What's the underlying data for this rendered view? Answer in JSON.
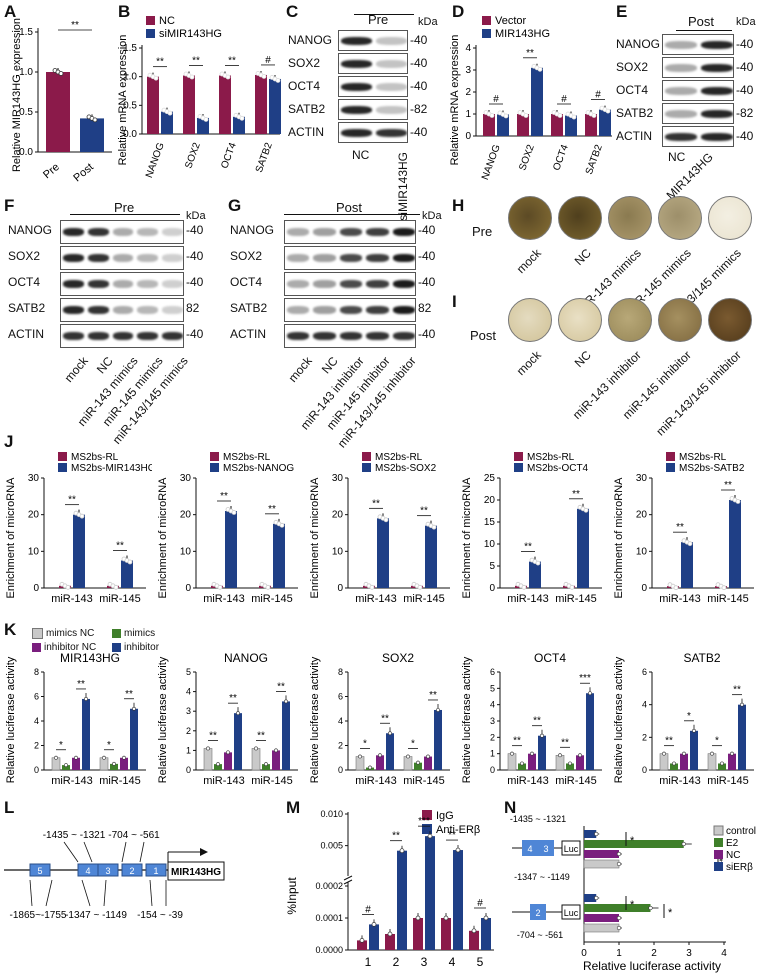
{
  "panel_letters": [
    "A",
    "B",
    "C",
    "D",
    "E",
    "F",
    "G",
    "H",
    "I",
    "J",
    "K",
    "L",
    "M",
    "N"
  ],
  "colors": {
    "maroon": "#8B1A4A",
    "navy": "#1F3F86",
    "green": "#3F7F2A",
    "purple": "#7A1E7E",
    "gray": "#C9C9C9",
    "blue": "#2E5FAC",
    "lightblue": "#4F86D6"
  },
  "panelA": {
    "ylabel": "Relative MIR143HG expression",
    "categories": [
      "Pre",
      "Post"
    ],
    "values": [
      1.0,
      0.42
    ],
    "errors": [
      0.05,
      0.05
    ],
    "ylim": [
      0,
      1.5
    ],
    "ticks": [
      "0.0",
      "0.5",
      "1.0",
      "1.5"
    ],
    "sig": "**"
  },
  "panelB": {
    "legend": [
      "NC",
      "siMIR143HG"
    ],
    "ylabel": "Relative mRNA expression",
    "categories": [
      "NANOG",
      "SOX2",
      "OCT4",
      "SATB2"
    ],
    "nc": [
      1.0,
      1.02,
      1.02,
      1.03
    ],
    "si": [
      0.39,
      0.28,
      0.3,
      0.96
    ],
    "ylim": [
      0,
      1.5
    ],
    "ticks": [
      "0.0",
      "0.5",
      "1.0",
      "1.5"
    ],
    "sig": [
      "**",
      "**",
      "**",
      "#"
    ]
  },
  "panelC": {
    "header": "Pre",
    "kda": "kDa",
    "rows": [
      "NANOG",
      "SOX2",
      "OCT4",
      "SATB2",
      "ACTIN"
    ],
    "mw": [
      "-40",
      "-40",
      "-40",
      "-82",
      "-40"
    ],
    "lanes": [
      "NC",
      "siMIR143HG"
    ]
  },
  "panelD": {
    "legend": [
      "Vector",
      "MIR143HG"
    ],
    "ylabel": "Relative mRNA expression",
    "categories": [
      "NANOG",
      "SOX2",
      "OCT4",
      "SATB2"
    ],
    "vec": [
      1.0,
      1.0,
      1.0,
      1.0
    ],
    "mir": [
      0.98,
      3.1,
      0.93,
      1.2
    ],
    "ylim": [
      0,
      4
    ],
    "ticks": [
      "0",
      "1",
      "2",
      "3",
      "4"
    ],
    "sig": [
      "#",
      "**",
      "#",
      "#"
    ]
  },
  "panelE": {
    "header": "Post",
    "kda": "kDa",
    "rows": [
      "NANOG",
      "SOX2",
      "OCT4",
      "SATB2",
      "ACTIN"
    ],
    "mw": [
      "-40",
      "-40",
      "-40",
      "-82",
      "-40"
    ],
    "lanes": [
      "NC",
      "MIR143HG"
    ]
  },
  "panelF": {
    "header": "Pre",
    "kda": "kDa",
    "rows": [
      "NANOG",
      "SOX2",
      "OCT4",
      "SATB2",
      "ACTIN"
    ],
    "mw": [
      "-40",
      "-40",
      "-40",
      "82",
      "-40"
    ],
    "lanes": [
      "mock",
      "NC",
      "miR-143 mimics",
      "miR-145 mimics",
      "miR-143/145 mimics"
    ]
  },
  "panelG": {
    "header": "Post",
    "kda": "kDa",
    "rows": [
      "NANOG",
      "SOX2",
      "OCT4",
      "SATB2",
      "ACTIN"
    ],
    "mw": [
      "-40",
      "-40",
      "-40",
      "82",
      "-40"
    ],
    "lanes": [
      "mock",
      "NC",
      "miR-143 inhibitor",
      "miR-145 inhibitor",
      "miR-143/145 inhibitor"
    ]
  },
  "panelH": {
    "row_label": "Pre",
    "lanes": [
      "mock",
      "NC",
      "miR-143 mimics",
      "miR-145 mimics",
      "miR-143/145 mimics"
    ]
  },
  "panelI": {
    "row_label": "Post",
    "lanes": [
      "mock",
      "NC",
      "miR-143 inhibitor",
      "miR-145 inhibitor",
      "miR-143/145 inhibitor"
    ]
  },
  "panelJ": {
    "ylabel": "Enrichment of microRNA",
    "categories": [
      "miR-143",
      "miR-145"
    ],
    "charts": [
      {
        "legend": [
          "MS2bs-RL",
          "MS2bs-MIR143HG"
        ],
        "ticks": [
          "0",
          "10",
          "20",
          "30"
        ],
        "ymax": 30,
        "rl": [
          0.6,
          0.6
        ],
        "target": [
          20.0,
          7.5
        ],
        "sig": [
          "**",
          "**"
        ]
      },
      {
        "legend": [
          "MS2bs-RL",
          "MS2bs-NANOG"
        ],
        "ticks": [
          "0",
          "10",
          "20",
          "30"
        ],
        "ymax": 30,
        "rl": [
          0.6,
          0.6
        ],
        "target": [
          21.0,
          17.5
        ],
        "sig": [
          "**",
          "**"
        ]
      },
      {
        "legend": [
          "MS2bs-RL",
          "MS2bs-SOX2"
        ],
        "ticks": [
          "0",
          "10",
          "20",
          "30"
        ],
        "ymax": 30,
        "rl": [
          0.6,
          0.6
        ],
        "target": [
          19.0,
          17.0
        ],
        "sig": [
          "**",
          "**"
        ]
      },
      {
        "legend": [
          "MS2bs-RL",
          "MS2bs-OCT4"
        ],
        "ticks": [
          "0",
          "5",
          "10",
          "15",
          "20",
          "25"
        ],
        "ymax": 25,
        "rl": [
          0.5,
          0.5
        ],
        "target": [
          6.0,
          18.0
        ],
        "sig": [
          "**",
          "**"
        ]
      },
      {
        "legend": [
          "MS2bs-RL",
          "MS2bs-SATB2"
        ],
        "ticks": [
          "0",
          "10",
          "20",
          "30"
        ],
        "ymax": 30,
        "rl": [
          0.5,
          0.5
        ],
        "target": [
          12.5,
          24.0
        ],
        "sig": [
          "**",
          "**"
        ]
      }
    ]
  },
  "panelK": {
    "legend": [
      "mimics NC",
      "mimics",
      "inhibitor NC",
      "inhibitor"
    ],
    "ylabel": "Relative luciferase activity",
    "categories": [
      "miR-143",
      "miR-145"
    ],
    "charts": [
      {
        "title": "MIR143HG",
        "ticks": [
          "0",
          "2",
          "4",
          "6",
          "8"
        ],
        "ymax": 8,
        "values": [
          [
            1.0,
            0.4,
            1.0,
            5.8
          ],
          [
            1.0,
            0.5,
            1.0,
            5.0
          ]
        ],
        "sig": [
          [
            "*",
            "**"
          ],
          [
            "*",
            "**"
          ]
        ]
      },
      {
        "title": "NANOG",
        "ticks": [
          "0",
          "1",
          "2",
          "3",
          "4",
          "5"
        ],
        "ymax": 5,
        "values": [
          [
            1.1,
            0.3,
            0.9,
            2.9
          ],
          [
            1.1,
            0.3,
            1.0,
            3.5
          ]
        ],
        "sig": [
          [
            "**",
            "**"
          ],
          [
            "**",
            "**"
          ]
        ]
      },
      {
        "title": "SOX2",
        "ticks": [
          "0",
          "2",
          "4",
          "6",
          "8"
        ],
        "ymax": 8,
        "values": [
          [
            1.1,
            0.2,
            1.2,
            3.0
          ],
          [
            1.1,
            0.6,
            1.1,
            4.9
          ]
        ],
        "sig": [
          [
            "*",
            "**"
          ],
          [
            "*",
            "**"
          ]
        ]
      },
      {
        "title": "OCT4",
        "ticks": [
          "0",
          "1",
          "2",
          "3",
          "4",
          "5",
          "6"
        ],
        "ymax": 6,
        "values": [
          [
            1.0,
            0.4,
            1.0,
            2.1
          ],
          [
            0.9,
            0.4,
            0.9,
            4.7
          ]
        ],
        "sig": [
          [
            "**",
            "**"
          ],
          [
            "**",
            "***"
          ]
        ]
      },
      {
        "title": "SATB2",
        "ticks": [
          "0",
          "2",
          "4",
          "6"
        ],
        "ymax": 6,
        "values": [
          [
            1.0,
            0.4,
            1.0,
            2.4
          ],
          [
            1.0,
            0.4,
            1.0,
            4.0
          ]
        ],
        "sig": [
          [
            "**",
            "*"
          ],
          [
            "*",
            "**"
          ]
        ]
      }
    ]
  },
  "panelL": {
    "gene": "MIR143HG",
    "regions": [
      "5",
      "4",
      "3",
      "2",
      "1"
    ],
    "top_labels": [
      "-1435 ~ -1321",
      "-704 ~ -561"
    ],
    "bottom_labels": [
      "-1865~-1755",
      "-1347 ~ -1149",
      "-154 ~ -39"
    ]
  },
  "panelM": {
    "legend": [
      "IgG",
      "Anti-ERβ"
    ],
    "ylabel": "%Input",
    "categories": [
      "1",
      "2",
      "3",
      "4",
      "5"
    ],
    "igg": [
      3e-05,
      5e-05,
      0.0001,
      0.0001,
      6e-05
    ],
    "anti": [
      8e-05,
      0.0042,
      0.0065,
      0.0043,
      0.0001
    ],
    "ticks_low": [
      "0.0000",
      "0.0001",
      "0.0002"
    ],
    "ticks_high": [
      "0.005",
      "0.010"
    ],
    "sig": [
      "#",
      "**",
      "***",
      "**",
      "#"
    ]
  },
  "panelN": {
    "legend": [
      "control",
      "E2",
      "NC",
      "siERβ"
    ],
    "xlabel": "Relative luciferase activity",
    "ticks": [
      "0",
      "1",
      "2",
      "3",
      "4"
    ],
    "xmax": 4,
    "construct1_labels": [
      "-1435 ~ -1321",
      "-1347 ~ -1149"
    ],
    "construct1_boxes": [
      "4",
      "3"
    ],
    "construct2_labels": [
      "-704 ~ -561"
    ],
    "construct2_box": "2",
    "luc": "Luc",
    "group1": [
      0.35,
      2.85,
      1.0,
      1.0
    ],
    "group2": [
      0.35,
      1.9,
      1.0,
      1.0
    ],
    "sig": [
      "*",
      "**",
      "*",
      "*"
    ]
  }
}
